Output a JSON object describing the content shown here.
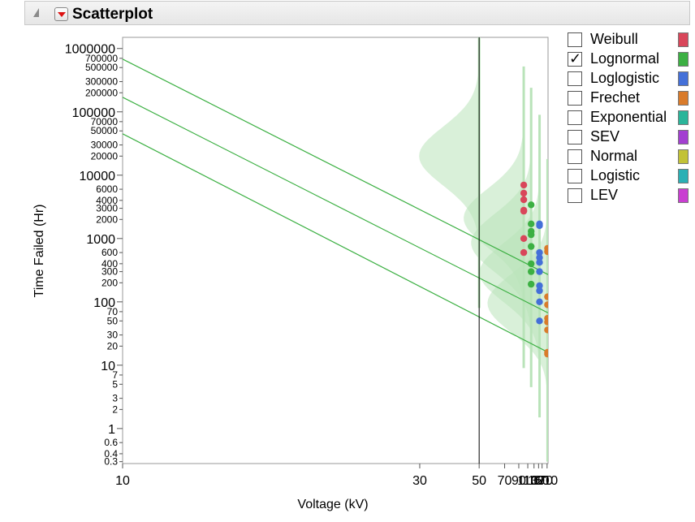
{
  "report": {
    "title": "Scatterplot"
  },
  "legend": [
    {
      "label": "Weibull",
      "checked": false,
      "color": "#d9465a"
    },
    {
      "label": "Lognormal",
      "checked": true,
      "color": "#3cb043"
    },
    {
      "label": "Loglogistic",
      "checked": false,
      "color": "#4470d8"
    },
    {
      "label": "Frechet",
      "checked": false,
      "color": "#d97b2b"
    },
    {
      "label": "Exponential",
      "checked": false,
      "color": "#2bb59a"
    },
    {
      "label": "SEV",
      "checked": false,
      "color": "#a33fd1"
    },
    {
      "label": "Normal",
      "checked": false,
      "color": "#c2c236"
    },
    {
      "label": "Logistic",
      "checked": false,
      "color": "#2ab0b5"
    },
    {
      "label": "LEV",
      "checked": false,
      "color": "#c93ed1"
    }
  ],
  "check_glyph": "✓",
  "chart_data": {
    "type": "scatter",
    "xlabel": "Voltage (kV)",
    "ylabel": "Time Failed (Hr)",
    "x_scale": "reciprocal",
    "xlim": [
      10,
      220
    ],
    "y_scale": "log",
    "ylim": [
      0.28,
      1500000
    ],
    "x_ticks": [
      10,
      30,
      50,
      70,
      90,
      110,
      130,
      150,
      170,
      210
    ],
    "y_ticks": [
      {
        "v": 1000000,
        "label": "1000000",
        "major": true
      },
      {
        "v": 700000,
        "label": "700000"
      },
      {
        "v": 500000,
        "label": "500000"
      },
      {
        "v": 300000,
        "label": "300000"
      },
      {
        "v": 200000,
        "label": "200000"
      },
      {
        "v": 100000,
        "label": "100000",
        "major": true
      },
      {
        "v": 70000,
        "label": "70000"
      },
      {
        "v": 50000,
        "label": "50000"
      },
      {
        "v": 30000,
        "label": "30000"
      },
      {
        "v": 20000,
        "label": "20000"
      },
      {
        "v": 10000,
        "label": "10000",
        "major": true
      },
      {
        "v": 6000,
        "label": "6000"
      },
      {
        "v": 4000,
        "label": "4000"
      },
      {
        "v": 3000,
        "label": "3000"
      },
      {
        "v": 2000,
        "label": "2000"
      },
      {
        "v": 1000,
        "label": "1000",
        "major": true
      },
      {
        "v": 600,
        "label": "600"
      },
      {
        "v": 400,
        "label": "400"
      },
      {
        "v": 300,
        "label": "300"
      },
      {
        "v": 200,
        "label": "200"
      },
      {
        "v": 100,
        "label": "100",
        "major": true
      },
      {
        "v": 70,
        "label": "70"
      },
      {
        "v": 50,
        "label": "50"
      },
      {
        "v": 30,
        "label": "30"
      },
      {
        "v": 20,
        "label": "20"
      },
      {
        "v": 10,
        "label": "10",
        "major": true
      },
      {
        "v": 7,
        "label": "7"
      },
      {
        "v": 5,
        "label": "5"
      },
      {
        "v": 3,
        "label": "3"
      },
      {
        "v": 2,
        "label": "2"
      },
      {
        "v": 1,
        "label": "1",
        "major": true
      },
      {
        "v": 0.6,
        "label": "0.6"
      },
      {
        "v": 0.4,
        "label": "0.4"
      },
      {
        "v": 0.3,
        "label": "0.3"
      }
    ],
    "reference_line_x": 50,
    "fit_lines": [
      {
        "name": "upper",
        "points": [
          [
            10,
            680000
          ],
          [
            220,
            270
          ]
        ]
      },
      {
        "name": "median",
        "points": [
          [
            10,
            170000
          ],
          [
            220,
            67
          ]
        ]
      },
      {
        "name": "lower",
        "points": [
          [
            10,
            45000
          ],
          [
            220,
            16
          ]
        ]
      }
    ],
    "densities": [
      {
        "x": 50,
        "center": 20000,
        "sd_decades": 0.46,
        "range": [
          80,
          1800000
        ]
      },
      {
        "x": 100,
        "center": 2100,
        "sd_decades": 0.46,
        "range": [
          9,
          520000
        ]
      },
      {
        "x": 120,
        "center": 850,
        "sd_decades": 0.46,
        "range": [
          4.5,
          240000
        ]
      },
      {
        "x": 155,
        "center": 290,
        "sd_decades": 0.46,
        "range": [
          1.5,
          90000
        ]
      },
      {
        "x": 215,
        "center": 95,
        "sd_decades": 0.46,
        "range": [
          0.3,
          18000
        ]
      }
    ],
    "series": [
      {
        "name": "",
        "color": "#d9465a",
        "points": [
          [
            100,
            7000
          ],
          [
            100,
            5200
          ],
          [
            100,
            4100
          ],
          [
            100,
            2800
          ],
          [
            100,
            2700
          ],
          [
            100,
            1000
          ],
          [
            100,
            600
          ]
        ]
      },
      {
        "name": "",
        "color": "#3cb043",
        "points": [
          [
            120,
            3400
          ],
          [
            120,
            1700
          ],
          [
            120,
            1300
          ],
          [
            120,
            1150
          ],
          [
            120,
            750
          ],
          [
            120,
            400
          ],
          [
            120,
            300
          ],
          [
            120,
            190
          ]
        ]
      },
      {
        "name": "",
        "color": "#4470d8",
        "points": [
          [
            155,
            1700
          ],
          [
            155,
            1600
          ],
          [
            155,
            600
          ],
          [
            155,
            500
          ],
          [
            155,
            420
          ],
          [
            155,
            300
          ],
          [
            155,
            180
          ],
          [
            155,
            150
          ],
          [
            155,
            100
          ],
          [
            155,
            50
          ]
        ]
      },
      {
        "name": "",
        "color": "#d97b2b",
        "points": [
          [
            215,
            700
          ],
          [
            215,
            620
          ],
          [
            215,
            120
          ],
          [
            215,
            90
          ],
          [
            215,
            55
          ],
          [
            215,
            48
          ],
          [
            215,
            36
          ],
          [
            215,
            16
          ],
          [
            215,
            15
          ]
        ]
      }
    ]
  }
}
